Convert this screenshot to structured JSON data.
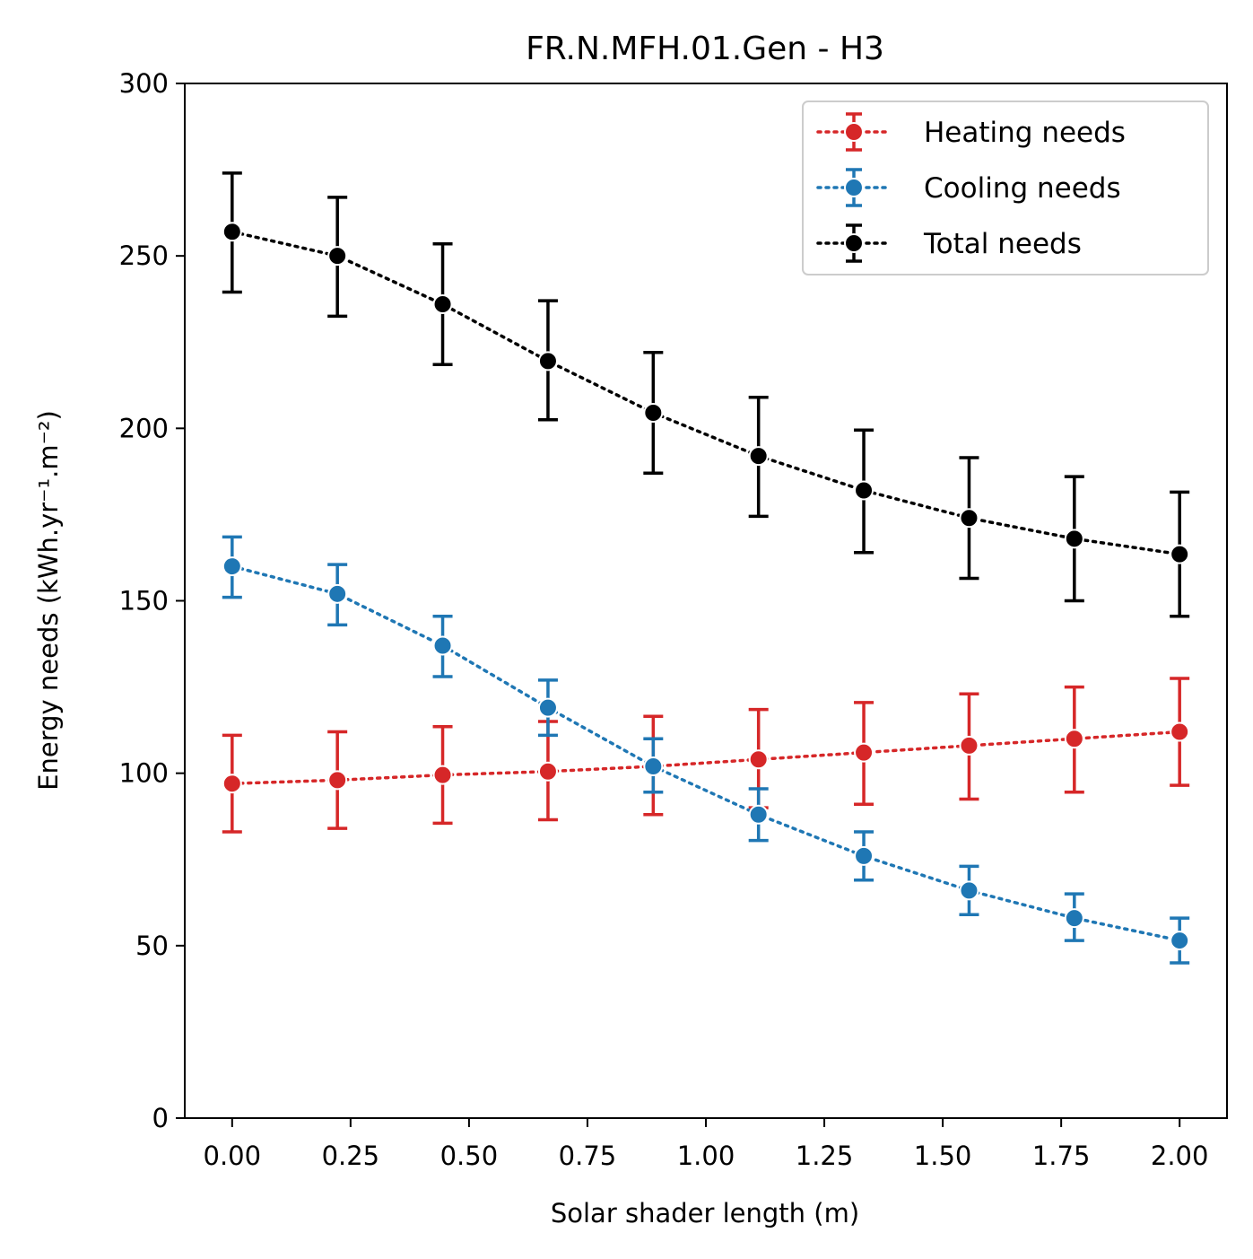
{
  "chart_data": {
    "type": "line",
    "title": "FR.N.MFH.01.Gen - H3",
    "xlabel": "Solar shader length (m)",
    "ylabel": "Energy needs (kWh.yr⁻¹.m⁻²)",
    "xlim": [
      -0.1,
      2.1
    ],
    "ylim": [
      0,
      300
    ],
    "xticks": [
      "0.00",
      "0.25",
      "0.50",
      "0.75",
      "1.00",
      "1.25",
      "1.50",
      "1.75",
      "2.00"
    ],
    "xtick_values": [
      0,
      0.25,
      0.5,
      0.75,
      1.0,
      1.25,
      1.5,
      1.75,
      2.0
    ],
    "yticks": [
      "0",
      "50",
      "100",
      "150",
      "200",
      "250",
      "300"
    ],
    "ytick_values": [
      0,
      50,
      100,
      150,
      200,
      250,
      300
    ],
    "grid": false,
    "legend_position": "top-right",
    "x": [
      0.0,
      0.2222,
      0.4444,
      0.6667,
      0.8889,
      1.1111,
      1.3333,
      1.5556,
      1.7778,
      2.0
    ],
    "series": [
      {
        "name": "Heating needs",
        "color": "#d62728",
        "values": [
          97,
          98,
          99.5,
          100.5,
          102,
          104,
          106,
          108,
          110,
          112
        ],
        "err_low": [
          83,
          84,
          85.5,
          86.5,
          88,
          90,
          91,
          92.5,
          94.5,
          96.5
        ],
        "err_high": [
          111,
          112,
          113.5,
          115,
          116.5,
          118.5,
          120.5,
          123,
          125,
          127.5
        ]
      },
      {
        "name": "Cooling needs",
        "color": "#1f77b4",
        "values": [
          160,
          152,
          137,
          119,
          102,
          88,
          76,
          66,
          58,
          51.5
        ],
        "err_low": [
          151,
          143,
          128,
          111,
          94.5,
          80.5,
          69,
          59,
          51.5,
          45
        ],
        "err_high": [
          168.5,
          160.5,
          145.5,
          127,
          110,
          95.5,
          83,
          73,
          65,
          58
        ]
      },
      {
        "name": "Total needs",
        "color": "#000000",
        "values": [
          257,
          250,
          236,
          219.5,
          204.5,
          192,
          182,
          174,
          168,
          163.5
        ],
        "err_low": [
          239.5,
          232.5,
          218.5,
          202.5,
          187,
          174.5,
          164,
          156.5,
          150,
          145.5
        ],
        "err_high": [
          274,
          267,
          253.5,
          237,
          222,
          209,
          199.5,
          191.5,
          186,
          181.5
        ]
      }
    ]
  }
}
